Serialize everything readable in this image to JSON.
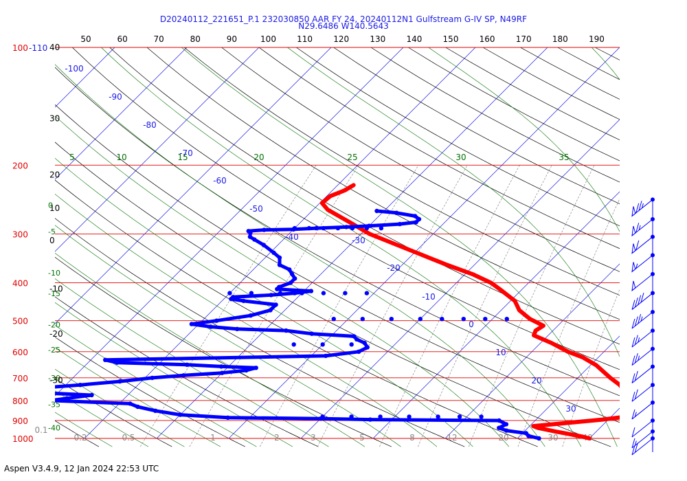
{
  "title_line1": "D20240112_221651_P.1 232030850 AAR FY 24, 20240112N1 Gulfstream G-IV SP, N49RF",
  "title_line2": "N29.6486 W140.5643",
  "footer": "Aspen V3.4.9, 12 Jan 2024  22:53 UTC",
  "colors": {
    "isobar": "#e00000",
    "isotherm": "#1a1ae6",
    "dry_adiabat": "#000000",
    "moist_adiabat": "#007000",
    "mixing_ratio": "#888888",
    "temperature_trace": "#ff0000",
    "dewpoint_trace": "#0000ff",
    "wind_barb": "#0000ff"
  },
  "chart_data": {
    "type": "skew-t log-p",
    "pressure_labels": [
      {
        "p": 100,
        "label": "100",
        "extra": "-110"
      },
      {
        "p": 200,
        "label": "200"
      },
      {
        "p": 300,
        "label": "300"
      },
      {
        "p": 400,
        "label": "400"
      },
      {
        "p": 500,
        "label": "500"
      },
      {
        "p": 600,
        "label": "600"
      },
      {
        "p": 700,
        "label": "700"
      },
      {
        "p": 800,
        "label": "800"
      },
      {
        "p": 900,
        "label": "900"
      },
      {
        "p": 1000,
        "label": "1000"
      }
    ],
    "dry_adiabat_top_labels": [
      "50",
      "60",
      "70",
      "80",
      "90",
      "100",
      "110",
      "120",
      "130",
      "140",
      "150",
      "160",
      "170",
      "180",
      "190"
    ],
    "dry_adiabat_left_labels": [
      {
        "p": 100,
        "label": "40"
      },
      {
        "p": 152,
        "label": "30"
      },
      {
        "p": 212,
        "label": "20"
      },
      {
        "p": 258,
        "label": "10"
      },
      {
        "p": 312,
        "label": "0"
      },
      {
        "p": 415,
        "label": "-10"
      },
      {
        "p": 541,
        "label": "-20"
      },
      {
        "p": 710,
        "label": "-30"
      }
    ],
    "moist_left_labels": [
      {
        "p": 253,
        "label": "0"
      },
      {
        "p": 296,
        "label": "-5"
      },
      {
        "p": 377,
        "label": "-10"
      },
      {
        "p": 426,
        "label": "-15"
      },
      {
        "p": 512,
        "label": "-20"
      },
      {
        "p": 593,
        "label": "-25"
      },
      {
        "p": 700,
        "label": "-30"
      },
      {
        "p": 818,
        "label": "-35"
      },
      {
        "p": 940,
        "label": "-40"
      }
    ],
    "moist_top_labels": [
      "5",
      "10",
      "15",
      "20",
      "25",
      "30",
      "35"
    ],
    "isotherm_labels": [
      "-100",
      "-90",
      "-80",
      "-70",
      "-60",
      "-50",
      "-40",
      "-30",
      "-20",
      "-10",
      "0",
      "10",
      "20",
      "30"
    ],
    "mixing_ratio_labels": [
      "0.1",
      "0.2",
      "0.5",
      "1",
      "2",
      "3",
      "5",
      "8",
      "12",
      "20",
      "30",
      "40"
    ],
    "temperature_profile": [
      {
        "p": 1000,
        "t": 20.0
      },
      {
        "p": 990,
        "t": 18.8
      },
      {
        "p": 975,
        "t": 16.6
      },
      {
        "p": 960,
        "t": 14.3
      },
      {
        "p": 940,
        "t": 11.4
      },
      {
        "p": 930,
        "t": 10.5
      },
      {
        "p": 895,
        "t": 19.2
      },
      {
        "p": 880,
        "t": 22.0
      },
      {
        "p": 860,
        "t": 22.5
      },
      {
        "p": 830,
        "t": 22.2
      },
      {
        "p": 800,
        "t": 21.0
      },
      {
        "p": 770,
        "t": 19.0
      },
      {
        "p": 730,
        "t": 16.8
      },
      {
        "p": 700,
        "t": 14.5
      },
      {
        "p": 650,
        "t": 10.8
      },
      {
        "p": 620,
        "t": 7.8
      },
      {
        "p": 600,
        "t": 5.0
      },
      {
        "p": 570,
        "t": 1.5
      },
      {
        "p": 545,
        "t": -2.0
      },
      {
        "p": 530,
        "t": -2.4
      },
      {
        "p": 515,
        "t": -2.0
      },
      {
        "p": 495,
        "t": -4.8
      },
      {
        "p": 470,
        "t": -7.5
      },
      {
        "p": 445,
        "t": -9.4
      },
      {
        "p": 420,
        "t": -12.5
      },
      {
        "p": 400,
        "t": -15.2
      },
      {
        "p": 380,
        "t": -19.0
      },
      {
        "p": 360,
        "t": -23.8
      },
      {
        "p": 340,
        "t": -28.5
      },
      {
        "p": 320,
        "t": -33.5
      },
      {
        "p": 300,
        "t": -38.8
      },
      {
        "p": 280,
        "t": -43.2
      },
      {
        "p": 260,
        "t": -48.0
      },
      {
        "p": 250,
        "t": -49.7
      },
      {
        "p": 240,
        "t": -49.5
      },
      {
        "p": 232,
        "t": -48.3
      },
      {
        "p": 225,
        "t": -47.8
      }
    ],
    "dewpoint_profile": [
      {
        "p": 1000,
        "t": 13.0
      },
      {
        "p": 985,
        "t": 11.2
      },
      {
        "p": 970,
        "t": 10.5
      },
      {
        "p": 955,
        "t": 7.4
      },
      {
        "p": 940,
        "t": 6.0
      },
      {
        "p": 920,
        "t": 6.5
      },
      {
        "p": 900,
        "t": 5.0
      },
      {
        "p": 895,
        "t": -13.0
      },
      {
        "p": 890,
        "t": -20.0
      },
      {
        "p": 885,
        "t": -33.0
      },
      {
        "p": 870,
        "t": -40.0
      },
      {
        "p": 850,
        "t": -44.0
      },
      {
        "p": 830,
        "t": -47.0
      },
      {
        "p": 815,
        "t": -48.5
      },
      {
        "p": 800,
        "t": -60.0
      },
      {
        "p": 790,
        "t": -58.0
      },
      {
        "p": 775,
        "t": -55.0
      },
      {
        "p": 765,
        "t": -62.0
      },
      {
        "p": 755,
        "t": -65.0
      },
      {
        "p": 740,
        "t": -62.0
      },
      {
        "p": 730,
        "t": -58.0
      },
      {
        "p": 715,
        "t": -53.0
      },
      {
        "p": 700,
        "t": -49.0
      },
      {
        "p": 690,
        "t": -45.0
      },
      {
        "p": 680,
        "t": -40.0
      },
      {
        "p": 670,
        "t": -37.0
      },
      {
        "p": 660,
        "t": -36.0
      },
      {
        "p": 655,
        "t": -41.0
      },
      {
        "p": 648,
        "t": -46.0
      },
      {
        "p": 640,
        "t": -56.0
      },
      {
        "p": 630,
        "t": -58.0
      },
      {
        "p": 615,
        "t": -28.0
      },
      {
        "p": 600,
        "t": -24.0
      },
      {
        "p": 585,
        "t": -23.4
      },
      {
        "p": 570,
        "t": -24.4
      },
      {
        "p": 558,
        "t": -26.0
      },
      {
        "p": 548,
        "t": -26.8
      },
      {
        "p": 540,
        "t": -33.0
      },
      {
        "p": 530,
        "t": -37.0
      },
      {
        "p": 525,
        "t": -44.0
      },
      {
        "p": 518,
        "t": -48.0
      },
      {
        "p": 510,
        "t": -51.0
      },
      {
        "p": 500,
        "t": -48.0
      },
      {
        "p": 485,
        "t": -44.0
      },
      {
        "p": 470,
        "t": -42.0
      },
      {
        "p": 455,
        "t": -42.0
      },
      {
        "p": 445,
        "t": -47.0
      },
      {
        "p": 440,
        "t": -49.0
      },
      {
        "p": 435,
        "t": -49.0
      },
      {
        "p": 430,
        "t": -44.0
      },
      {
        "p": 425,
        "t": -41.0
      },
      {
        "p": 420,
        "t": -39.0
      },
      {
        "p": 415,
        "t": -44.0
      },
      {
        "p": 410,
        "t": -44.0
      },
      {
        "p": 400,
        "t": -43.0
      },
      {
        "p": 390,
        "t": -43.0
      },
      {
        "p": 380,
        "t": -44.0
      },
      {
        "p": 370,
        "t": -45.0
      },
      {
        "p": 360,
        "t": -47.0
      },
      {
        "p": 345,
        "t": -48.0
      },
      {
        "p": 335,
        "t": -49.5
      },
      {
        "p": 320,
        "t": -52.0
      },
      {
        "p": 310,
        "t": -54.0
      },
      {
        "p": 305,
        "t": -55.0
      },
      {
        "p": 298,
        "t": -55.5
      },
      {
        "p": 295,
        "t": -56.0
      },
      {
        "p": 293,
        "t": -54.0
      },
      {
        "p": 292,
        "t": -50.0
      },
      {
        "p": 290,
        "t": -47.0
      },
      {
        "p": 288,
        "t": -43.0
      },
      {
        "p": 286,
        "t": -40.0
      },
      {
        "p": 283,
        "t": -36.0
      },
      {
        "p": 280,
        "t": -34.0
      },
      {
        "p": 275,
        "t": -34.0
      },
      {
        "p": 270,
        "t": -35.0
      },
      {
        "p": 265,
        "t": -38.0
      },
      {
        "p": 262,
        "t": -41.0
      }
    ],
    "dewpoint_extra_points": [
      {
        "p": 495,
        "t": -32.0
      },
      {
        "p": 495,
        "t": -28.0
      },
      {
        "p": 495,
        "t": -24.0
      },
      {
        "p": 495,
        "t": -20.0
      },
      {
        "p": 495,
        "t": -17.0
      },
      {
        "p": 495,
        "t": -14.0
      },
      {
        "p": 495,
        "t": -11.0
      },
      {
        "p": 495,
        "t": -8.0
      },
      {
        "p": 575,
        "t": -34.0
      },
      {
        "p": 575,
        "t": -30.0
      },
      {
        "p": 575,
        "t": -26.0
      },
      {
        "p": 425,
        "t": -50.0
      },
      {
        "p": 425,
        "t": -47.0
      },
      {
        "p": 425,
        "t": -43.0
      },
      {
        "p": 425,
        "t": -40.0
      },
      {
        "p": 425,
        "t": -37.0
      },
      {
        "p": 425,
        "t": -34.0
      },
      {
        "p": 425,
        "t": -31.0
      },
      {
        "p": 880,
        "t": -20.0
      },
      {
        "p": 880,
        "t": -16.0
      },
      {
        "p": 880,
        "t": -12.0
      },
      {
        "p": 880,
        "t": -8.0
      },
      {
        "p": 880,
        "t": -4.0
      },
      {
        "p": 880,
        "t": -1.0
      },
      {
        "p": 880,
        "t": 2.0
      },
      {
        "p": 290,
        "t": -50.0
      },
      {
        "p": 290,
        "t": -48.0
      },
      {
        "p": 290,
        "t": -46.0
      },
      {
        "p": 290,
        "t": -44.0
      },
      {
        "p": 290,
        "t": -42.0
      },
      {
        "p": 290,
        "t": -40.0
      },
      {
        "p": 290,
        "t": -38.0
      }
    ],
    "wind_barbs": [
      {
        "p": 245,
        "speed_kt": 75
      },
      {
        "p": 275,
        "speed_kt": 65
      },
      {
        "p": 305,
        "speed_kt": 60
      },
      {
        "p": 340,
        "speed_kt": 55
      },
      {
        "p": 380,
        "speed_kt": 50
      },
      {
        "p": 425,
        "speed_kt": 40
      },
      {
        "p": 475,
        "speed_kt": 35
      },
      {
        "p": 530,
        "speed_kt": 25
      },
      {
        "p": 590,
        "speed_kt": 25
      },
      {
        "p": 655,
        "speed_kt": 20
      },
      {
        "p": 730,
        "speed_kt": 20
      },
      {
        "p": 810,
        "speed_kt": 15
      },
      {
        "p": 900,
        "speed_kt": 10
      },
      {
        "p": 960,
        "speed_kt": 15
      },
      {
        "p": 1000,
        "speed_kt": 20
      }
    ]
  }
}
